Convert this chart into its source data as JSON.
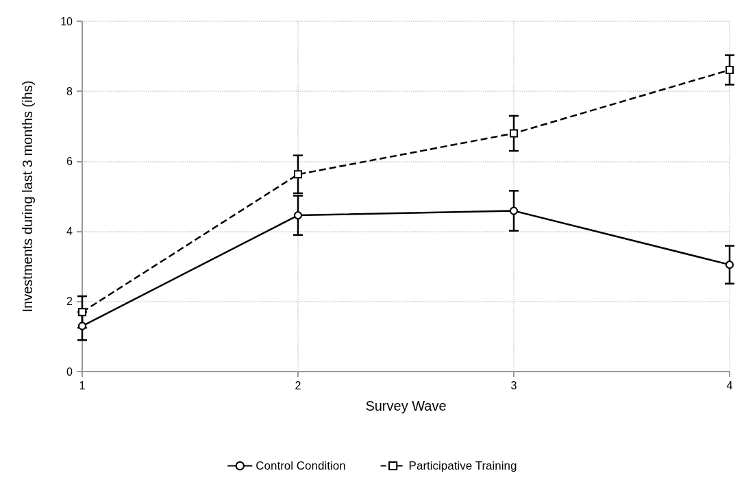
{
  "chart_data": {
    "type": "line",
    "xlabel": "Survey Wave",
    "ylabel": "Investments during last 3 months (ihs)",
    "x": [
      1,
      2,
      3,
      4
    ],
    "xlim": [
      1,
      4
    ],
    "xticks": [
      1,
      2,
      3,
      4
    ],
    "ylim": [
      0,
      10
    ],
    "yticks": [
      0,
      2,
      4,
      6,
      8,
      10
    ],
    "grid": true,
    "legend": "bottom",
    "series": [
      {
        "name": "Control Condition",
        "color": "#000000",
        "marker": "circle",
        "line_style": "solid",
        "values": [
          1.3,
          4.46,
          4.59,
          3.05
        ],
        "errors": [
          0.4,
          0.56,
          0.57,
          0.54
        ]
      },
      {
        "name": "Participative Training",
        "color": "#000000",
        "marker": "square",
        "line_style": "dashed",
        "values": [
          1.7,
          5.63,
          6.8,
          8.61
        ],
        "errors": [
          0.45,
          0.54,
          0.5,
          0.42
        ]
      }
    ]
  }
}
